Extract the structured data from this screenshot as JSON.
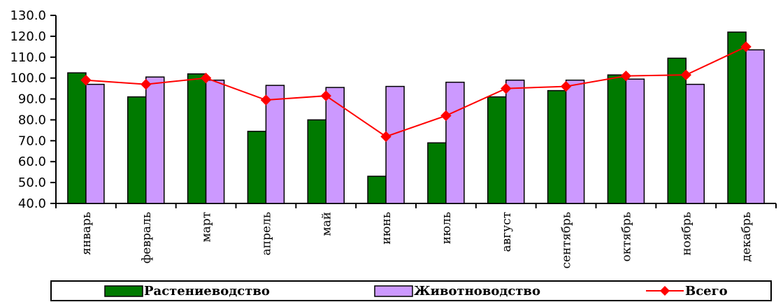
{
  "chart_data": {
    "type": "bar",
    "categories": [
      "январь",
      "февраль",
      "март",
      "апрель",
      "май",
      "июнь",
      "июль",
      "август",
      "сентябрь",
      "октябрь",
      "ноябрь",
      "декабрь"
    ],
    "series": [
      {
        "name": "Растениеводство",
        "type": "bar",
        "color": "#007A00",
        "values": [
          102.5,
          91.0,
          102.0,
          74.5,
          80.0,
          53.0,
          69.0,
          91.0,
          94.0,
          101.5,
          109.5,
          122.0
        ]
      },
      {
        "name": "Животноводство",
        "type": "bar",
        "color": "#CC99FF",
        "values": [
          97.0,
          100.5,
          99.0,
          96.5,
          95.5,
          96.0,
          98.0,
          99.0,
          99.0,
          99.5,
          97.0,
          113.5
        ]
      },
      {
        "name": "Всего",
        "type": "line",
        "color": "#FF0000",
        "marker": "diamond",
        "values": [
          99.0,
          97.0,
          100.0,
          89.5,
          91.5,
          72.0,
          82.0,
          95.0,
          96.0,
          101.0,
          101.5,
          115.0
        ]
      }
    ],
    "ylim": [
      40,
      130
    ],
    "yticks": [
      "40.0",
      "50.0",
      "60.0",
      "70.0",
      "80.0",
      "90.0",
      "100.0",
      "110.0",
      "120.0",
      "130.0"
    ],
    "legend_position": "bottom",
    "grid": false
  }
}
